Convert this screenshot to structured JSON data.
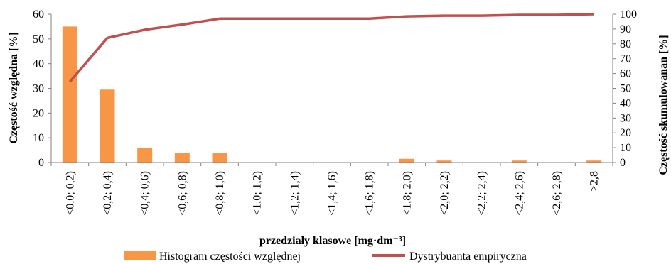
{
  "chart_data": {
    "type": "bar",
    "categories": [
      "<0,0; 0,2)",
      "<0,2; 0,4)",
      "<0,4; 0,6)",
      "<0,6; 0,8)",
      "<0,8; 1,0)",
      "<1,0; 1,2)",
      "<1,2; 1,4)",
      "<1,4; 1,6)",
      "<1,6; 1,8)",
      "<1,8; 2,0)",
      "<2,0; 2,2)",
      "<2,2; 2,4)",
      "<2,4; 2,6)",
      "<2,6; 2,8)",
      ">2,8"
    ],
    "series": [
      {
        "name": "Histogram częstości względnej",
        "type": "bar",
        "axis": "left",
        "color": "#F79646",
        "values": [
          55,
          29.5,
          6,
          3.8,
          3.8,
          0,
          0,
          0,
          0,
          1.5,
          0.8,
          0,
          0.8,
          0,
          0.8
        ]
      },
      {
        "name": "Dystrybuanta empiryczna",
        "type": "line",
        "axis": "right",
        "color": "#C0504D",
        "values": [
          54.5,
          84,
          89.5,
          93,
          97,
          97,
          97,
          97,
          97,
          98.5,
          99,
          99,
          99.5,
          99.5,
          100
        ]
      }
    ],
    "y_left": {
      "label": "Częstość względna [%]",
      "ylim": [
        0,
        60
      ],
      "ticks": [
        "0",
        "10",
        "20",
        "30",
        "40",
        "50",
        "60"
      ]
    },
    "y_right": {
      "label": "Częstość skumulowanan [%]",
      "ylim": [
        0,
        100
      ],
      "ticks": [
        "0",
        "10",
        "20",
        "30",
        "40",
        "50",
        "60",
        "70",
        "80",
        "90",
        "100"
      ]
    },
    "xlabel": "przedziały klasowe [mg·dm⁻³]",
    "grid": false,
    "legend_position": "bottom"
  }
}
